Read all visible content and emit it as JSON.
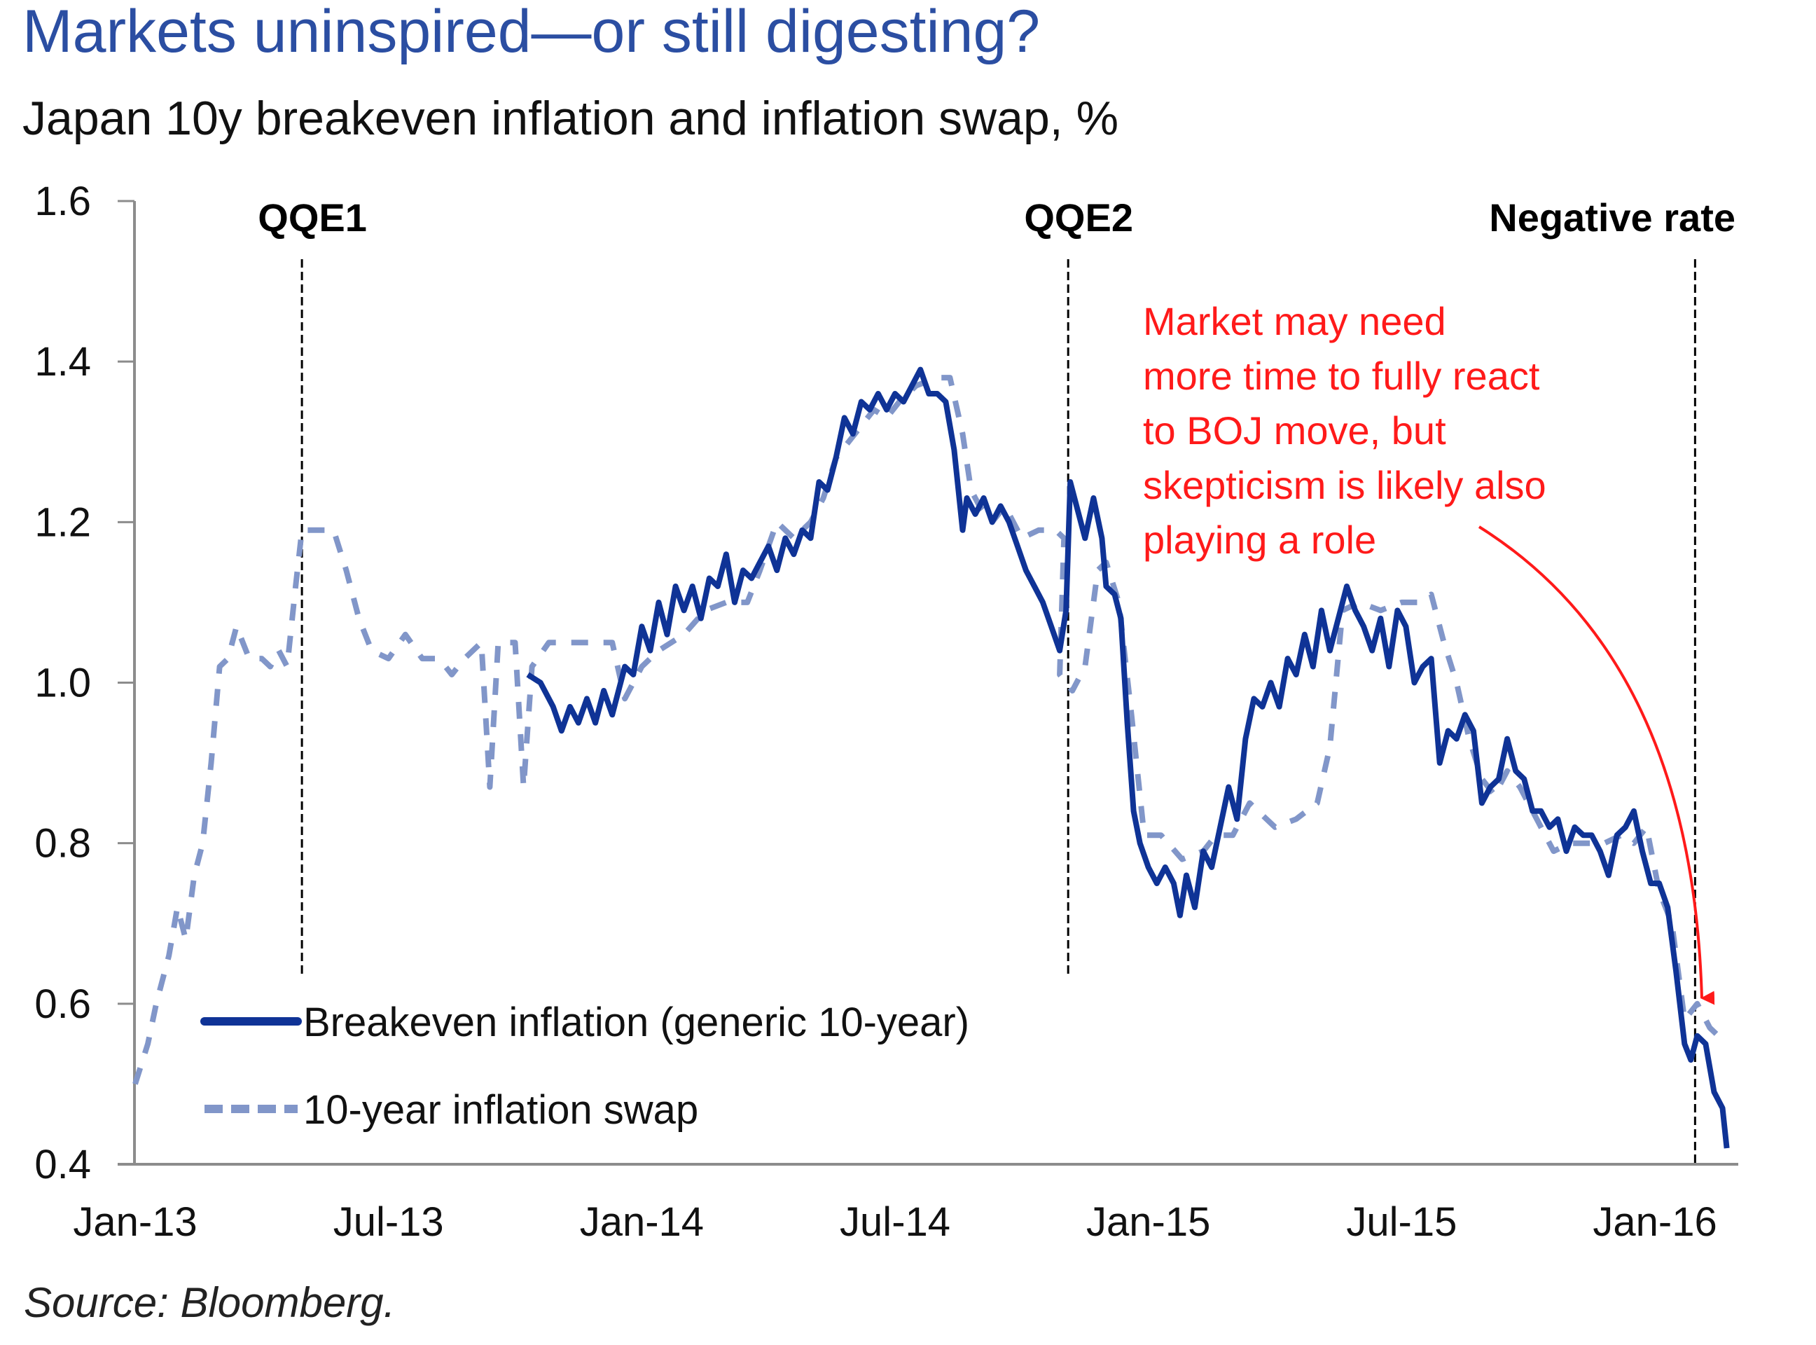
{
  "title": "Markets uninspired—or still digesting?",
  "subtitle": "Japan 10y breakeven inflation and inflation swap, %",
  "source": "Source: Bloomberg.",
  "colors": {
    "title": "#2b4ea2",
    "breakeven": "#0f3396",
    "swap": "#8196c9",
    "event_line": "#000000",
    "annotation": "#ff1a1a",
    "axis": "#8c8c8c"
  },
  "chart_data": {
    "type": "line",
    "title": "Japan 10y breakeven inflation and inflation swap, %",
    "xlabel": "",
    "ylabel": "%",
    "x_unit": "months since Jan-2013",
    "xlim": [
      0,
      38.5
    ],
    "ylim": [
      0.4,
      1.6
    ],
    "grid": false,
    "legend_position": "bottom-left",
    "y_ticks": [
      {
        "value": 1.6,
        "label": "1.6"
      },
      {
        "value": 1.4,
        "label": "1.4"
      },
      {
        "value": 1.2,
        "label": "1.2"
      },
      {
        "value": 1.0,
        "label": "1.0"
      },
      {
        "value": 0.8,
        "label": "0.8"
      },
      {
        "value": 0.6,
        "label": "0.6"
      },
      {
        "value": 0.4,
        "label": "0.4"
      }
    ],
    "x_ticks": [
      {
        "value": 0,
        "label": "Jan-13"
      },
      {
        "value": 6,
        "label": "Jul-13"
      },
      {
        "value": 12,
        "label": "Jan-14"
      },
      {
        "value": 18,
        "label": "Jul-14"
      },
      {
        "value": 24,
        "label": "Jan-15"
      },
      {
        "value": 30,
        "label": "Jul-15"
      },
      {
        "value": 36,
        "label": "Jan-16"
      }
    ],
    "events": [
      {
        "label": "QQE1",
        "x": 3.95
      },
      {
        "label": "QQE2",
        "x": 22.1
      },
      {
        "label": "Negative rate",
        "x": 36.95
      }
    ],
    "series": [
      {
        "name": "Breakeven inflation (generic 10-year)",
        "style": "solid",
        "points": [
          [
            9.3,
            1.01
          ],
          [
            9.6,
            1.0
          ],
          [
            9.9,
            0.97
          ],
          [
            10.1,
            0.94
          ],
          [
            10.3,
            0.97
          ],
          [
            10.5,
            0.95
          ],
          [
            10.7,
            0.98
          ],
          [
            10.9,
            0.95
          ],
          [
            11.1,
            0.99
          ],
          [
            11.3,
            0.96
          ],
          [
            11.6,
            1.02
          ],
          [
            11.8,
            1.01
          ],
          [
            12.0,
            1.07
          ],
          [
            12.2,
            1.04
          ],
          [
            12.4,
            1.1
          ],
          [
            12.6,
            1.06
          ],
          [
            12.8,
            1.12
          ],
          [
            13.0,
            1.09
          ],
          [
            13.2,
            1.12
          ],
          [
            13.4,
            1.08
          ],
          [
            13.6,
            1.13
          ],
          [
            13.8,
            1.12
          ],
          [
            14.0,
            1.16
          ],
          [
            14.2,
            1.1
          ],
          [
            14.4,
            1.14
          ],
          [
            14.6,
            1.13
          ],
          [
            14.8,
            1.15
          ],
          [
            15.0,
            1.17
          ],
          [
            15.2,
            1.14
          ],
          [
            15.4,
            1.18
          ],
          [
            15.6,
            1.16
          ],
          [
            15.8,
            1.19
          ],
          [
            16.0,
            1.18
          ],
          [
            16.2,
            1.25
          ],
          [
            16.4,
            1.24
          ],
          [
            16.6,
            1.28
          ],
          [
            16.8,
            1.33
          ],
          [
            17.0,
            1.31
          ],
          [
            17.2,
            1.35
          ],
          [
            17.4,
            1.34
          ],
          [
            17.6,
            1.36
          ],
          [
            17.8,
            1.34
          ],
          [
            18.0,
            1.36
          ],
          [
            18.2,
            1.35
          ],
          [
            18.4,
            1.37
          ],
          [
            18.6,
            1.39
          ],
          [
            18.8,
            1.36
          ],
          [
            19.0,
            1.36
          ],
          [
            19.2,
            1.35
          ],
          [
            19.4,
            1.29
          ],
          [
            19.6,
            1.19
          ],
          [
            19.7,
            1.23
          ],
          [
            19.9,
            1.21
          ],
          [
            20.1,
            1.23
          ],
          [
            20.3,
            1.2
          ],
          [
            20.5,
            1.22
          ],
          [
            20.7,
            1.2
          ],
          [
            20.9,
            1.17
          ],
          [
            21.1,
            1.14
          ],
          [
            21.3,
            1.12
          ],
          [
            21.5,
            1.1
          ],
          [
            21.7,
            1.07
          ],
          [
            21.9,
            1.04
          ],
          [
            22.05,
            1.09
          ],
          [
            22.15,
            1.25
          ],
          [
            22.3,
            1.22
          ],
          [
            22.5,
            1.18
          ],
          [
            22.7,
            1.23
          ],
          [
            22.9,
            1.18
          ],
          [
            23.0,
            1.12
          ],
          [
            23.2,
            1.11
          ],
          [
            23.35,
            1.08
          ],
          [
            23.5,
            0.95
          ],
          [
            23.65,
            0.84
          ],
          [
            23.8,
            0.8
          ],
          [
            24.0,
            0.77
          ],
          [
            24.2,
            0.75
          ],
          [
            24.4,
            0.77
          ],
          [
            24.6,
            0.75
          ],
          [
            24.75,
            0.71
          ],
          [
            24.9,
            0.76
          ],
          [
            25.1,
            0.72
          ],
          [
            25.3,
            0.79
          ],
          [
            25.5,
            0.77
          ],
          [
            25.7,
            0.82
          ],
          [
            25.9,
            0.87
          ],
          [
            26.1,
            0.83
          ],
          [
            26.3,
            0.93
          ],
          [
            26.5,
            0.98
          ],
          [
            26.7,
            0.97
          ],
          [
            26.9,
            1.0
          ],
          [
            27.1,
            0.97
          ],
          [
            27.3,
            1.03
          ],
          [
            27.5,
            1.01
          ],
          [
            27.7,
            1.06
          ],
          [
            27.9,
            1.02
          ],
          [
            28.1,
            1.09
          ],
          [
            28.3,
            1.04
          ],
          [
            28.5,
            1.08
          ],
          [
            28.7,
            1.12
          ],
          [
            28.9,
            1.09
          ],
          [
            29.1,
            1.07
          ],
          [
            29.3,
            1.04
          ],
          [
            29.5,
            1.08
          ],
          [
            29.7,
            1.02
          ],
          [
            29.9,
            1.09
          ],
          [
            30.1,
            1.07
          ],
          [
            30.3,
            1.0
          ],
          [
            30.5,
            1.02
          ],
          [
            30.7,
            1.03
          ],
          [
            30.9,
            0.9
          ],
          [
            31.1,
            0.94
          ],
          [
            31.3,
            0.93
          ],
          [
            31.5,
            0.96
          ],
          [
            31.7,
            0.94
          ],
          [
            31.9,
            0.85
          ],
          [
            32.1,
            0.87
          ],
          [
            32.3,
            0.88
          ],
          [
            32.5,
            0.93
          ],
          [
            32.7,
            0.89
          ],
          [
            32.9,
            0.88
          ],
          [
            33.1,
            0.84
          ],
          [
            33.3,
            0.84
          ],
          [
            33.5,
            0.82
          ],
          [
            33.7,
            0.83
          ],
          [
            33.9,
            0.79
          ],
          [
            34.1,
            0.82
          ],
          [
            34.3,
            0.81
          ],
          [
            34.5,
            0.81
          ],
          [
            34.7,
            0.79
          ],
          [
            34.9,
            0.76
          ],
          [
            35.1,
            0.81
          ],
          [
            35.3,
            0.82
          ],
          [
            35.5,
            0.84
          ],
          [
            35.7,
            0.79
          ],
          [
            35.9,
            0.75
          ],
          [
            36.1,
            0.75
          ],
          [
            36.3,
            0.72
          ],
          [
            36.5,
            0.64
          ],
          [
            36.7,
            0.55
          ],
          [
            36.85,
            0.53
          ],
          [
            37.0,
            0.56
          ],
          [
            37.2,
            0.55
          ],
          [
            37.4,
            0.49
          ],
          [
            37.6,
            0.47
          ],
          [
            37.7,
            0.42
          ]
        ]
      },
      {
        "name": "10-year inflation swap",
        "style": "dashed",
        "points": [
          [
            0.0,
            0.5
          ],
          [
            0.3,
            0.55
          ],
          [
            0.5,
            0.6
          ],
          [
            0.8,
            0.66
          ],
          [
            1.0,
            0.72
          ],
          [
            1.2,
            0.68
          ],
          [
            1.4,
            0.76
          ],
          [
            1.6,
            0.8
          ],
          [
            1.8,
            0.9
          ],
          [
            2.0,
            1.02
          ],
          [
            2.2,
            1.03
          ],
          [
            2.4,
            1.07
          ],
          [
            2.7,
            1.03
          ],
          [
            3.0,
            1.03
          ],
          [
            3.2,
            1.02
          ],
          [
            3.4,
            1.04
          ],
          [
            3.6,
            1.02
          ],
          [
            3.8,
            1.12
          ],
          [
            3.95,
            1.19
          ],
          [
            4.3,
            1.19
          ],
          [
            4.7,
            1.19
          ],
          [
            5.0,
            1.14
          ],
          [
            5.3,
            1.08
          ],
          [
            5.6,
            1.04
          ],
          [
            6.0,
            1.03
          ],
          [
            6.4,
            1.06
          ],
          [
            6.8,
            1.03
          ],
          [
            7.2,
            1.03
          ],
          [
            7.5,
            1.01
          ],
          [
            7.8,
            1.03
          ],
          [
            8.2,
            1.05
          ],
          [
            8.4,
            0.87
          ],
          [
            8.6,
            1.05
          ],
          [
            9.0,
            1.05
          ],
          [
            9.2,
            0.87
          ],
          [
            9.4,
            1.02
          ],
          [
            9.8,
            1.05
          ],
          [
            10.5,
            1.05
          ],
          [
            11.3,
            1.05
          ],
          [
            11.6,
            0.98
          ],
          [
            12.0,
            1.02
          ],
          [
            12.4,
            1.04
          ],
          [
            13.0,
            1.06
          ],
          [
            13.5,
            1.09
          ],
          [
            14.0,
            1.1
          ],
          [
            14.5,
            1.1
          ],
          [
            14.8,
            1.14
          ],
          [
            15.2,
            1.2
          ],
          [
            15.6,
            1.18
          ],
          [
            16.0,
            1.2
          ],
          [
            16.3,
            1.23
          ],
          [
            16.6,
            1.28
          ],
          [
            16.9,
            1.3
          ],
          [
            17.2,
            1.32
          ],
          [
            17.5,
            1.34
          ],
          [
            17.8,
            1.33
          ],
          [
            18.1,
            1.35
          ],
          [
            18.5,
            1.37
          ],
          [
            19.0,
            1.38
          ],
          [
            19.3,
            1.38
          ],
          [
            19.6,
            1.31
          ],
          [
            19.8,
            1.24
          ],
          [
            20.0,
            1.22
          ],
          [
            20.3,
            1.2
          ],
          [
            20.6,
            1.22
          ],
          [
            21.0,
            1.18
          ],
          [
            21.4,
            1.19
          ],
          [
            21.8,
            1.19
          ],
          [
            22.0,
            1.18
          ],
          [
            21.9,
            1.01
          ],
          [
            22.2,
            0.99
          ],
          [
            22.5,
            1.02
          ],
          [
            22.8,
            1.14
          ],
          [
            23.0,
            1.15
          ],
          [
            23.3,
            1.1
          ],
          [
            23.6,
            0.96
          ],
          [
            23.9,
            0.81
          ],
          [
            24.3,
            0.81
          ],
          [
            24.8,
            0.78
          ],
          [
            25.3,
            0.79
          ],
          [
            25.6,
            0.81
          ],
          [
            26.0,
            0.81
          ],
          [
            26.4,
            0.85
          ],
          [
            27.0,
            0.82
          ],
          [
            27.5,
            0.83
          ],
          [
            28.0,
            0.85
          ],
          [
            28.3,
            0.92
          ],
          [
            28.6,
            1.09
          ],
          [
            29.0,
            1.1
          ],
          [
            29.5,
            1.09
          ],
          [
            30.0,
            1.1
          ],
          [
            30.4,
            1.1
          ],
          [
            30.7,
            1.11
          ],
          [
            31.0,
            1.05
          ],
          [
            31.3,
            1.0
          ],
          [
            31.6,
            0.93
          ],
          [
            31.9,
            0.88
          ],
          [
            32.2,
            0.86
          ],
          [
            32.5,
            0.89
          ],
          [
            32.8,
            0.87
          ],
          [
            33.2,
            0.83
          ],
          [
            33.6,
            0.79
          ],
          [
            34.0,
            0.8
          ],
          [
            34.4,
            0.8
          ],
          [
            34.8,
            0.8
          ],
          [
            35.2,
            0.81
          ],
          [
            35.5,
            0.8
          ],
          [
            35.8,
            0.82
          ],
          [
            36.1,
            0.74
          ],
          [
            36.4,
            0.7
          ],
          [
            36.7,
            0.58
          ],
          [
            37.0,
            0.6
          ],
          [
            37.3,
            0.57
          ],
          [
            37.5,
            0.56
          ]
        ]
      }
    ],
    "annotations": [
      {
        "text_lines": [
          "Market may need",
          "more time to fully react",
          "to BOJ move, but",
          "skepticism is likely also",
          "playing a role"
        ],
        "color": "#ff1a1a",
        "arrow_points_to_x": 37.5,
        "arrow_points_to_y": 0.58
      }
    ]
  }
}
